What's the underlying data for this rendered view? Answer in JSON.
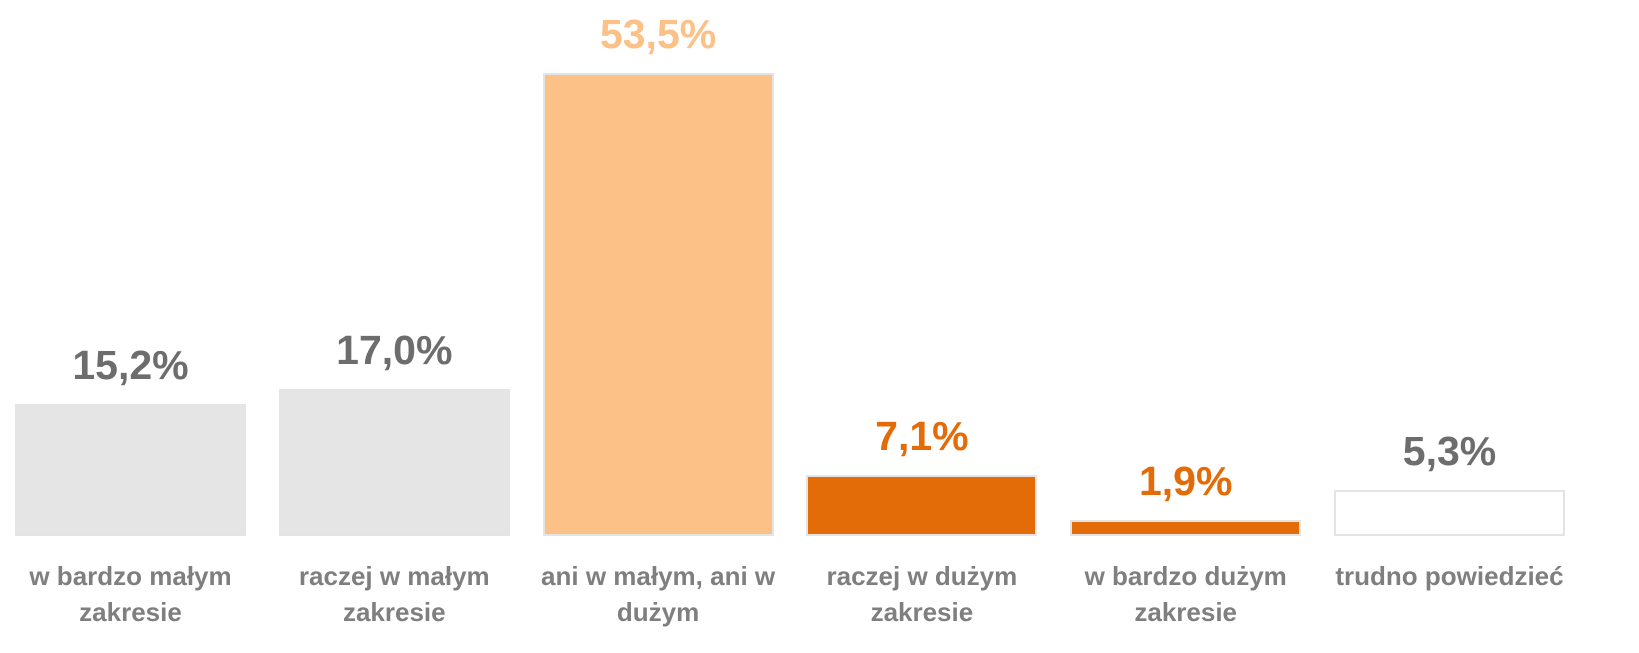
{
  "chart_data": {
    "type": "bar",
    "categories": [
      "w bardzo małym zakresie",
      "raczej w małym zakresie",
      "ani w małym, ani w dużym",
      "raczej w dużym zakresie",
      "w bardzo dużym zakresie",
      "trudno powiedzieć"
    ],
    "values": [
      15.2,
      17.0,
      53.5,
      7.1,
      1.9,
      5.3
    ],
    "value_labels": [
      "15,2%",
      "17,0%",
      "53,5%",
      "7,1%",
      "1,9%",
      "5,3%"
    ],
    "colors": [
      "#e5e5e5",
      "#e5e5e5",
      "#fbc187",
      "#e36c09",
      "#e36c09",
      "#ffffff"
    ],
    "label_colors": [
      "#6d6d6d",
      "#6d6d6d",
      "#fbc187",
      "#e36c09",
      "#e36c09",
      "#6d6d6d"
    ]
  }
}
